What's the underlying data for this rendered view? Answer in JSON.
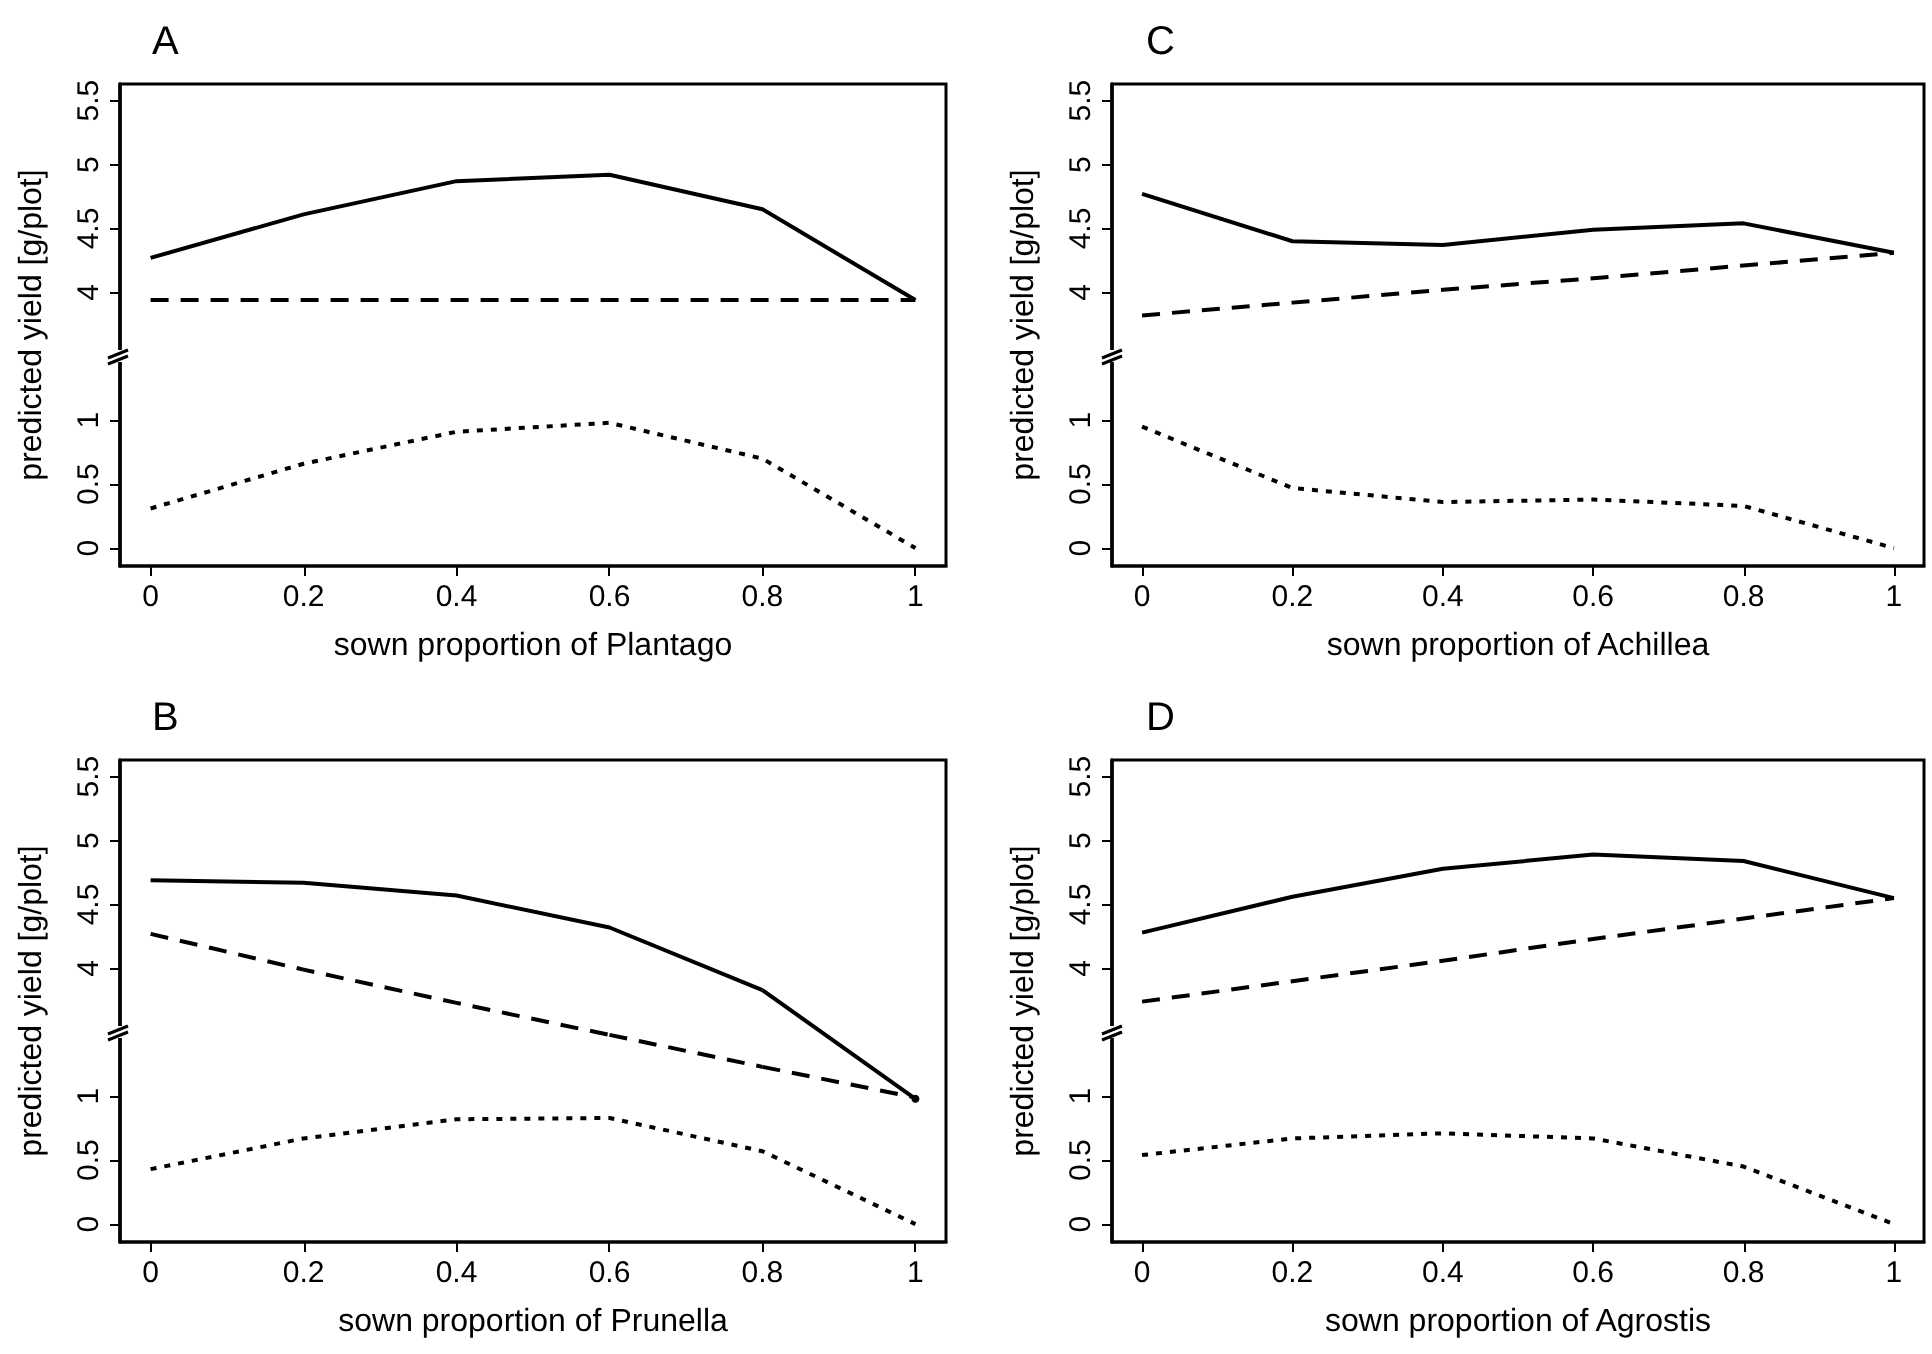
{
  "chart_data": [
    {
      "type": "line",
      "title": "A",
      "xlabel": "sown proportion of Plantago",
      "y2label": "predicted yield [g/plot]",
      "x": [
        0,
        0.2,
        0.4,
        0.6,
        0.8,
        1
      ],
      "xlim": [
        -0.04,
        1.04
      ],
      "xticks": [
        0,
        0.2,
        0.4,
        0.6,
        0.8,
        1
      ],
      "ylim": [
        -0.14,
        3.63
      ],
      "yticks": [
        0,
        0.5,
        1
      ],
      "y2lim": [
        1.86,
        5.63
      ],
      "y2ticks": [
        4,
        4.5,
        5,
        5.5
      ],
      "marker": "none",
      "series": [
        {
          "color": "#000000",
          "line_style": "solid",
          "axis": "y2",
          "values": [
            4.27,
            4.61,
            4.87,
            4.92,
            4.65,
            3.94
          ]
        },
        {
          "color": "#000000",
          "line_style": "dashed",
          "axis": "y2",
          "values": [
            3.94,
            3.94,
            3.94,
            3.94,
            3.94,
            3.94
          ]
        },
        {
          "color": "#000000",
          "line_style": "dotted",
          "values": [
            0.31,
            0.66,
            0.91,
            0.98,
            0.7,
            0
          ]
        }
      ]
    },
    {
      "type": "line",
      "title": "C",
      "xlabel": "sown proportion of Achillea",
      "y2label": "predicted yield [g/plot]",
      "x": [
        0,
        0.2,
        0.4,
        0.6,
        0.8,
        1
      ],
      "xlim": [
        -0.04,
        1.04
      ],
      "xticks": [
        0,
        0.2,
        0.4,
        0.6,
        0.8,
        1
      ],
      "ylim": [
        -0.14,
        3.63
      ],
      "yticks": [
        0,
        0.5,
        1
      ],
      "y2lim": [
        1.86,
        5.63
      ],
      "y2ticks": [
        4,
        4.5,
        5,
        5.5
      ],
      "marker": "none",
      "series": [
        {
          "color": "#000000",
          "line_style": "solid",
          "axis": "y2",
          "values": [
            4.77,
            4.4,
            4.37,
            4.49,
            4.54,
            4.31
          ]
        },
        {
          "color": "#000000",
          "line_style": "dashed",
          "axis": "y2",
          "values": [
            3.82,
            3.92,
            4.02,
            4.11,
            4.21,
            4.31
          ]
        },
        {
          "color": "#000000",
          "line_style": "dotted",
          "values": [
            0.95,
            0.47,
            0.36,
            0.38,
            0.33,
            0
          ]
        }
      ]
    },
    {
      "type": "line",
      "title": "B",
      "xlabel": "sown proportion of Prunella",
      "y2label": "predicted yield [g/plot]",
      "x": [
        0,
        0.2,
        0.4,
        0.6,
        0.8,
        1
      ],
      "xlim": [
        -0.04,
        1.04
      ],
      "xticks": [
        0,
        0.2,
        0.4,
        0.6,
        0.8,
        1
      ],
      "ylim": [
        -0.14,
        3.63
      ],
      "yticks": [
        0,
        0.5,
        1
      ],
      "y2lim": [
        1.86,
        5.63
      ],
      "y2ticks": [
        4,
        4.5,
        5,
        5.5
      ],
      "marker": "none",
      "series": [
        {
          "color": "#000000",
          "line_style": "solid",
          "axis": "y2",
          "values": [
            4.69,
            4.67,
            4.57,
            4.32,
            3.83,
            null
          ]
        },
        {
          "color": "#000000",
          "line_style": "solid",
          "marker": "circle",
          "values": [
            null,
            null,
            null,
            null,
            null,
            0.98
          ]
        },
        {
          "color": "#000000",
          "line_style": "dashed",
          "axis": "y2",
          "values": [
            4.27,
            3.99,
            3.73,
            3.48,
            null,
            null
          ]
        },
        {
          "color": "#000000",
          "line_style": "dashed",
          "values": [
            null,
            null,
            null,
            null,
            1.23,
            0.99
          ]
        },
        {
          "color": "#000000",
          "line_style": "dotted",
          "values": [
            0.43,
            0.67,
            0.82,
            0.83,
            0.57,
            0
          ]
        }
      ]
    },
    {
      "type": "line",
      "title": "D",
      "xlabel": "sown proportion of Agrostis",
      "y2label": "predicted yield [g/plot]",
      "x": [
        0,
        0.2,
        0.4,
        0.6,
        0.8,
        1
      ],
      "xlim": [
        -0.04,
        1.04
      ],
      "xticks": [
        0,
        0.2,
        0.4,
        0.6,
        0.8,
        1
      ],
      "ylim": [
        -0.14,
        3.63
      ],
      "yticks": [
        0,
        0.5,
        1
      ],
      "y2lim": [
        1.86,
        5.63
      ],
      "y2ticks": [
        4,
        4.5,
        5,
        5.5
      ],
      "marker": "none",
      "series": [
        {
          "color": "#000000",
          "line_style": "solid",
          "axis": "y2",
          "values": [
            4.28,
            4.56,
            4.78,
            4.89,
            4.84,
            4.55
          ]
        },
        {
          "color": "#000000",
          "line_style": "dashed",
          "axis": "y2",
          "values": [
            3.74,
            3.9,
            4.06,
            4.23,
            4.39,
            4.55
          ]
        },
        {
          "color": "#000000",
          "line_style": "dotted",
          "values": [
            0.54,
            0.67,
            0.71,
            0.67,
            0.45,
            0
          ]
        }
      ]
    }
  ]
}
